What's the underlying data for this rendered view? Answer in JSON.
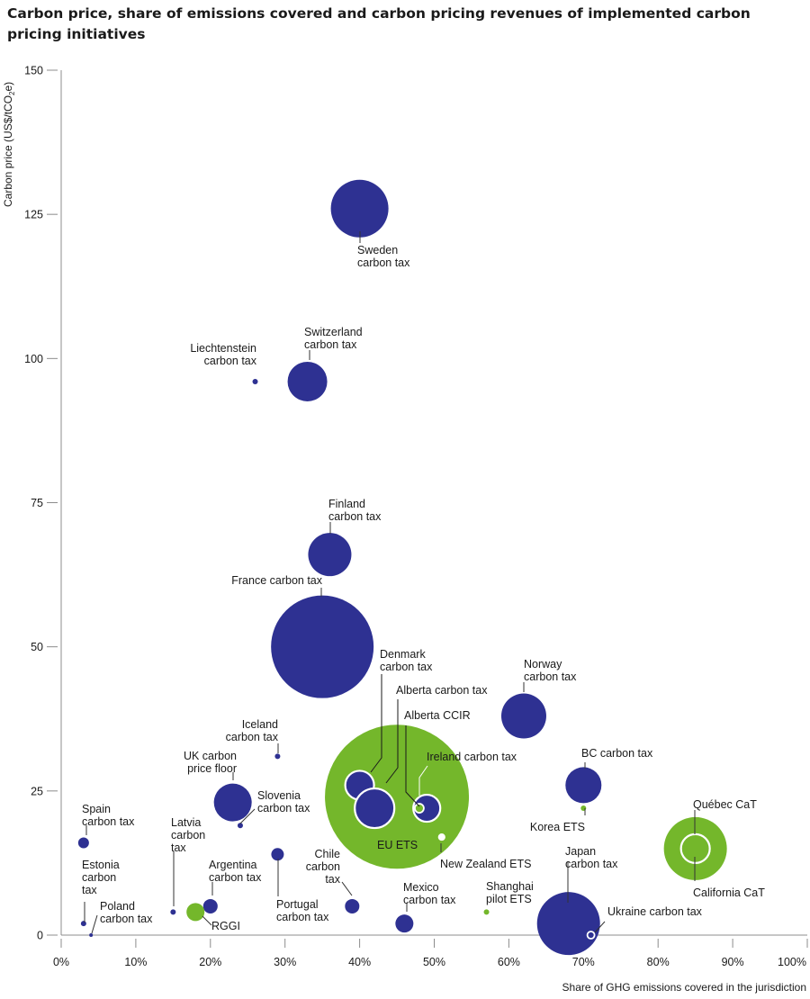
{
  "chart_data": {
    "type": "scatter",
    "title": "Carbon price, share of emissions covered and carbon pricing revenues of implemented carbon pricing initiatives",
    "xlabel": "Share of GHG emissions covered in the jurisdiction",
    "ylabel_parts": [
      "Carbon price (US$/tCO",
      "2",
      "e)"
    ],
    "xlim": [
      0,
      100
    ],
    "ylim": [
      0,
      150
    ],
    "x_ticks": [
      0,
      10,
      20,
      30,
      40,
      50,
      60,
      70,
      80,
      90,
      100
    ],
    "x_tick_labels": [
      "0%",
      "10%",
      "20%",
      "30%",
      "40%",
      "50%",
      "60%",
      "70%",
      "80%",
      "90%",
      "100%"
    ],
    "y_ticks": [
      0,
      25,
      50,
      75,
      100,
      125,
      150
    ],
    "y_tick_labels": [
      "0",
      "25",
      "50",
      "75",
      "100",
      "125",
      "150"
    ],
    "grid": false,
    "colors": {
      "tax": "#2e3192",
      "ets": "#74b72b",
      "axis": "#8c8c8c"
    },
    "points": [
      {
        "id": "california",
        "lines": [
          "California CaT"
        ],
        "type": "ets",
        "x": 85,
        "y": 15,
        "size": 35,
        "ring": false
      },
      {
        "id": "quebec",
        "lines": [
          "Québec CaT"
        ],
        "type": "ets",
        "x": 85,
        "y": 15,
        "size": 16,
        "ring": true
      },
      {
        "id": "eu-ets",
        "lines": [
          "EU ETS"
        ],
        "type": "ets",
        "x": 45,
        "y": 24,
        "size": 80,
        "ring": false
      },
      {
        "id": "sweden",
        "lines": [
          "Sweden",
          "carbon tax"
        ],
        "type": "tax",
        "x": 40,
        "y": 126,
        "size": 32,
        "ring": false
      },
      {
        "id": "switzerland",
        "lines": [
          "Switzerland",
          "carbon tax"
        ],
        "type": "tax",
        "x": 33,
        "y": 96,
        "size": 22,
        "ring": false
      },
      {
        "id": "liechtenstein",
        "lines": [
          "Liechtenstein",
          "carbon tax"
        ],
        "type": "tax",
        "x": 26,
        "y": 96,
        "size": 3,
        "ring": false
      },
      {
        "id": "finland",
        "lines": [
          "Finland",
          "carbon tax"
        ],
        "type": "tax",
        "x": 36,
        "y": 66,
        "size": 24,
        "ring": false
      },
      {
        "id": "france",
        "lines": [
          "France carbon tax"
        ],
        "type": "tax",
        "x": 35,
        "y": 50,
        "size": 57,
        "ring": false
      },
      {
        "id": "norway",
        "lines": [
          "Norway",
          "carbon tax"
        ],
        "type": "tax",
        "x": 62,
        "y": 38,
        "size": 25,
        "ring": false
      },
      {
        "id": "denmark",
        "lines": [
          "Denmark",
          "carbon tax"
        ],
        "type": "tax",
        "x": 40,
        "y": 26,
        "size": 16,
        "ring": true
      },
      {
        "id": "alberta-tax",
        "lines": [
          "Alberta carbon tax"
        ],
        "type": "tax",
        "x": 42,
        "y": 22,
        "size": 22,
        "ring": true
      },
      {
        "id": "ireland",
        "lines": [
          "Ireland carbon tax"
        ],
        "type": "tax",
        "x": 49,
        "y": 22,
        "size": 15,
        "ring": true
      },
      {
        "id": "alberta-ccir",
        "lines": [
          "Alberta CCIR"
        ],
        "type": "ets",
        "x": 48,
        "y": 22,
        "size": 5,
        "ring": true
      },
      {
        "id": "nz-ets",
        "lines": [
          "New Zealand ETS"
        ],
        "type": "ets",
        "x": 51,
        "y": 17,
        "size": 5,
        "ring": false
      },
      {
        "id": "iceland",
        "lines": [
          "Iceland",
          "carbon tax"
        ],
        "type": "tax",
        "x": 29,
        "y": 31,
        "size": 3,
        "ring": false
      },
      {
        "id": "uk",
        "lines": [
          "UK carbon",
          "price floor"
        ],
        "type": "tax",
        "x": 23,
        "y": 23,
        "size": 21,
        "ring": false
      },
      {
        "id": "slovenia",
        "lines": [
          "Slovenia",
          "carbon tax"
        ],
        "type": "tax",
        "x": 24,
        "y": 19,
        "size": 3,
        "ring": false
      },
      {
        "id": "bc",
        "lines": [
          "BC carbon tax"
        ],
        "type": "tax",
        "x": 70,
        "y": 26,
        "size": 20,
        "ring": false
      },
      {
        "id": "korea",
        "lines": [
          "Korea ETS"
        ],
        "type": "ets",
        "x": 70,
        "y": 22,
        "size": 3,
        "ring": false
      },
      {
        "id": "spain",
        "lines": [
          "Spain",
          "carbon tax"
        ],
        "type": "tax",
        "x": 3,
        "y": 16,
        "size": 6,
        "ring": false
      },
      {
        "id": "latvia",
        "lines": [
          "Latvia",
          "carbon",
          "tax"
        ],
        "type": "tax",
        "x": 15,
        "y": 4,
        "size": 3,
        "ring": false
      },
      {
        "id": "argentina",
        "lines": [
          "Argentina",
          "carbon tax"
        ],
        "type": "tax",
        "x": 20,
        "y": 5,
        "size": 8,
        "ring": false
      },
      {
        "id": "rggi",
        "lines": [
          "RGGI"
        ],
        "type": "ets",
        "x": 18,
        "y": 4,
        "size": 10,
        "ring": false
      },
      {
        "id": "portugal",
        "lines": [
          "Portugal",
          "carbon tax"
        ],
        "type": "tax",
        "x": 29,
        "y": 14,
        "size": 7,
        "ring": false
      },
      {
        "id": "chile",
        "lines": [
          "Chile",
          "carbon",
          "tax"
        ],
        "type": "tax",
        "x": 39,
        "y": 5,
        "size": 8,
        "ring": false
      },
      {
        "id": "mexico",
        "lines": [
          "Mexico",
          "carbon tax"
        ],
        "type": "tax",
        "x": 46,
        "y": 2,
        "size": 10,
        "ring": false
      },
      {
        "id": "shanghai",
        "lines": [
          "Shanghai",
          "pilot ETS"
        ],
        "type": "ets",
        "x": 57,
        "y": 4,
        "size": 3,
        "ring": false
      },
      {
        "id": "japan",
        "lines": [
          "Japan",
          "carbon tax"
        ],
        "type": "tax",
        "x": 68,
        "y": 2,
        "size": 35,
        "ring": false
      },
      {
        "id": "ukraine",
        "lines": [
          "Ukraine carbon tax"
        ],
        "type": "tax",
        "x": 71,
        "y": 0,
        "size": 4,
        "ring": true
      },
      {
        "id": "estonia",
        "lines": [
          "Estonia",
          "carbon",
          "tax"
        ],
        "type": "tax",
        "x": 3,
        "y": 2,
        "size": 3,
        "ring": false
      },
      {
        "id": "poland",
        "lines": [
          "Poland",
          "carbon tax"
        ],
        "type": "tax",
        "x": 4,
        "y": 0,
        "size": 2,
        "ring": false
      }
    ]
  }
}
